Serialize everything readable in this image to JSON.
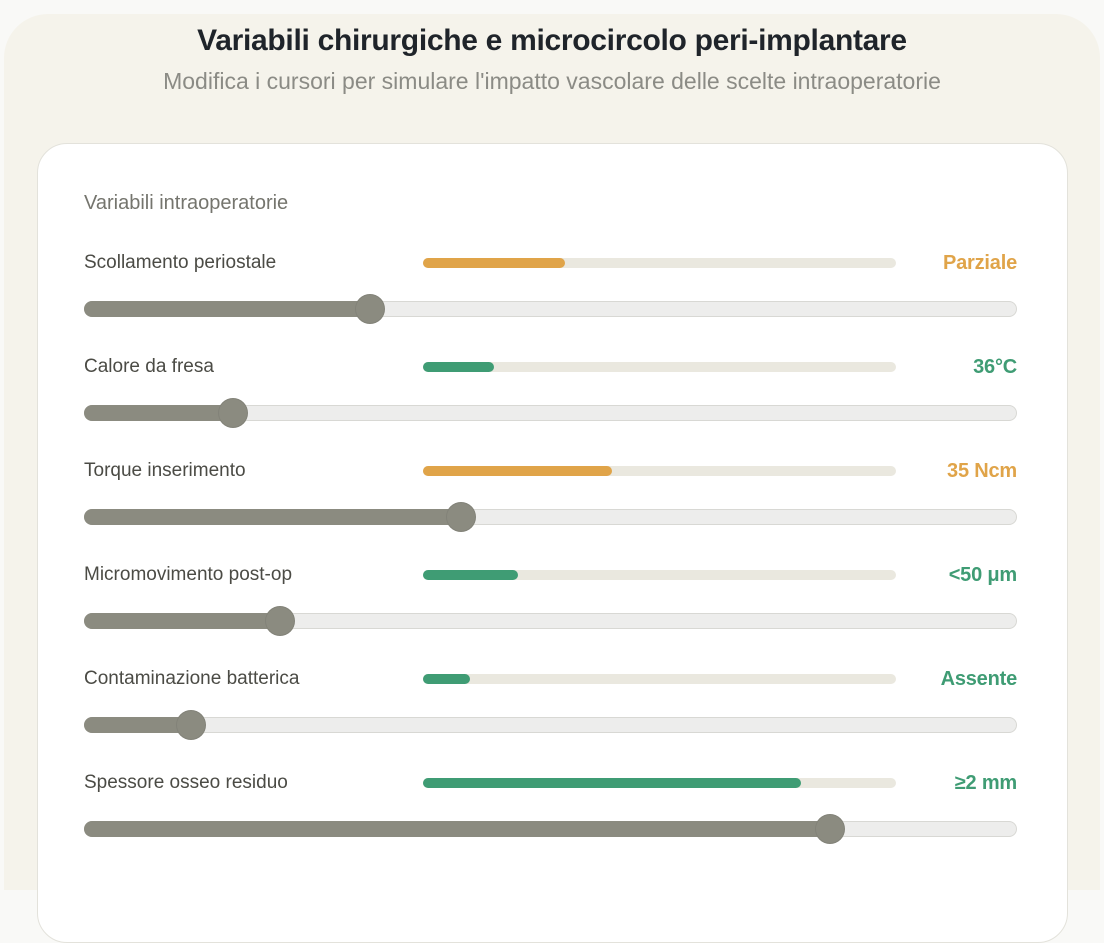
{
  "page": {
    "title": "Variabili chirurgiche e microcircolo peri-implantare",
    "subtitle": "Modifica i cursori per simulare l'impatto vascolare delle scelte intraoperatorie"
  },
  "panel": {
    "heading": "Variabili intraoperatorie",
    "sliders": [
      {
        "label": "Scollamento periostale",
        "value": "Parziale",
        "status": "warning",
        "bar_pct": 30,
        "slider_pct": 30.7
      },
      {
        "label": "Calore da fresa",
        "value": "36°C",
        "status": "ok",
        "bar_pct": 15,
        "slider_pct": 16
      },
      {
        "label": "Torque inserimento",
        "value": "35 Ncm",
        "status": "warning",
        "bar_pct": 40,
        "slider_pct": 40.4
      },
      {
        "label": "Micromovimento post-op",
        "value": "<50 μm",
        "status": "ok",
        "bar_pct": 20,
        "slider_pct": 21
      },
      {
        "label": "Contaminazione batterica",
        "value": "Assente",
        "status": "ok",
        "bar_pct": 10,
        "slider_pct": 11.5
      },
      {
        "label": "Spessore osseo residuo",
        "value": "≥2 mm",
        "status": "ok",
        "bar_pct": 80,
        "slider_pct": 80
      }
    ]
  },
  "colors": {
    "warning": "#e0a449",
    "ok": "#3f9c74",
    "slider_fill": "#8b8b80",
    "minibar_track": "#eae8df"
  }
}
